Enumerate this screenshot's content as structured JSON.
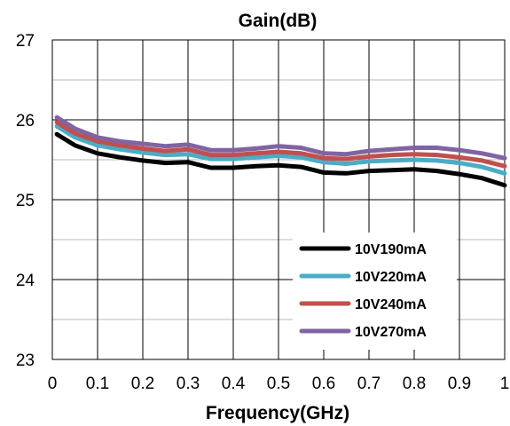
{
  "chart_data": {
    "type": "line",
    "title": "Gain(dB)",
    "xlabel": "Frequency(GHz)",
    "ylabel": "",
    "xlim": [
      0,
      1
    ],
    "ylim": [
      23,
      27
    ],
    "xticks": [
      "0",
      "0.1",
      "0.2",
      "0.3",
      "0.4",
      "0.5",
      "0.6",
      "0.7",
      "0.8",
      "0.9",
      "1"
    ],
    "yticks": [
      "23",
      "24",
      "25",
      "26",
      "27"
    ],
    "grid": true,
    "legend_position": "bottom-right",
    "x": [
      0.01,
      0.05,
      0.1,
      0.15,
      0.2,
      0.25,
      0.3,
      0.35,
      0.4,
      0.45,
      0.5,
      0.55,
      0.6,
      0.65,
      0.7,
      0.75,
      0.8,
      0.85,
      0.9,
      0.95,
      1.0
    ],
    "series": [
      {
        "name": "10V190mA",
        "color": "#000000",
        "values": [
          25.82,
          25.68,
          25.58,
          25.53,
          25.49,
          25.46,
          25.47,
          25.4,
          25.4,
          25.42,
          25.43,
          25.41,
          25.34,
          25.33,
          25.36,
          25.37,
          25.38,
          25.36,
          25.32,
          25.27,
          25.18
        ]
      },
      {
        "name": "10V220mA",
        "color": "#4BACC6",
        "values": [
          25.92,
          25.78,
          25.68,
          25.63,
          25.59,
          25.56,
          25.57,
          25.51,
          25.51,
          25.53,
          25.55,
          25.53,
          25.47,
          25.45,
          25.48,
          25.49,
          25.5,
          25.49,
          25.46,
          25.41,
          25.33
        ]
      },
      {
        "name": "10V240mA",
        "color": "#C0504D",
        "values": [
          25.97,
          25.83,
          25.73,
          25.68,
          25.64,
          25.61,
          25.63,
          25.56,
          25.56,
          25.58,
          25.6,
          25.58,
          25.52,
          25.51,
          25.54,
          25.56,
          25.57,
          25.56,
          25.53,
          25.49,
          25.42
        ]
      },
      {
        "name": "10V270mA",
        "color": "#8064A2",
        "values": [
          26.03,
          25.89,
          25.78,
          25.73,
          25.7,
          25.67,
          25.69,
          25.62,
          25.62,
          25.64,
          25.67,
          25.65,
          25.58,
          25.57,
          25.61,
          25.63,
          25.65,
          25.65,
          25.62,
          25.58,
          25.52
        ]
      }
    ]
  }
}
